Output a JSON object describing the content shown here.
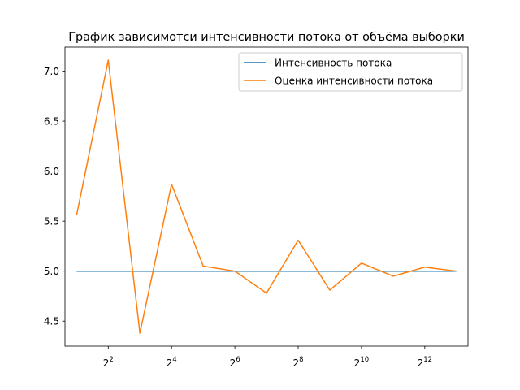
{
  "chart_data": {
    "type": "line",
    "title": "График зависимотси интенсивности потока от объёма выборки",
    "xlabel": "",
    "ylabel": "",
    "x_scale": "log2",
    "x": [
      2,
      4,
      8,
      16,
      32,
      64,
      128,
      256,
      512,
      1024,
      2048,
      4096,
      8192
    ],
    "x_tick_labels": [
      {
        "base": "2",
        "exp": "2"
      },
      {
        "base": "2",
        "exp": "4"
      },
      {
        "base": "2",
        "exp": "6"
      },
      {
        "base": "2",
        "exp": "8"
      },
      {
        "base": "2",
        "exp": "10"
      },
      {
        "base": "2",
        "exp": "12"
      }
    ],
    "x_ticks": [
      4,
      16,
      64,
      256,
      1024,
      4096
    ],
    "xlim": [
      1.55,
      10550
    ],
    "ylim": [
      4.25,
      7.24
    ],
    "y_ticks": [
      "4.5",
      "5.0",
      "5.5",
      "6.0",
      "6.5",
      "7.0"
    ],
    "grid": false,
    "legend_position": "upper-right",
    "series": [
      {
        "name": "Интенсивность потока",
        "color": "#1f77b4",
        "values": [
          5.0,
          5.0,
          5.0,
          5.0,
          5.0,
          5.0,
          5.0,
          5.0,
          5.0,
          5.0,
          5.0,
          5.0,
          5.0
        ]
      },
      {
        "name": "Оценка интенсивности потока",
        "color": "#ff7f0e",
        "values": [
          5.56,
          7.11,
          4.38,
          5.87,
          5.05,
          5.0,
          4.78,
          5.31,
          4.81,
          5.08,
          4.95,
          5.04,
          5.0
        ]
      }
    ]
  }
}
